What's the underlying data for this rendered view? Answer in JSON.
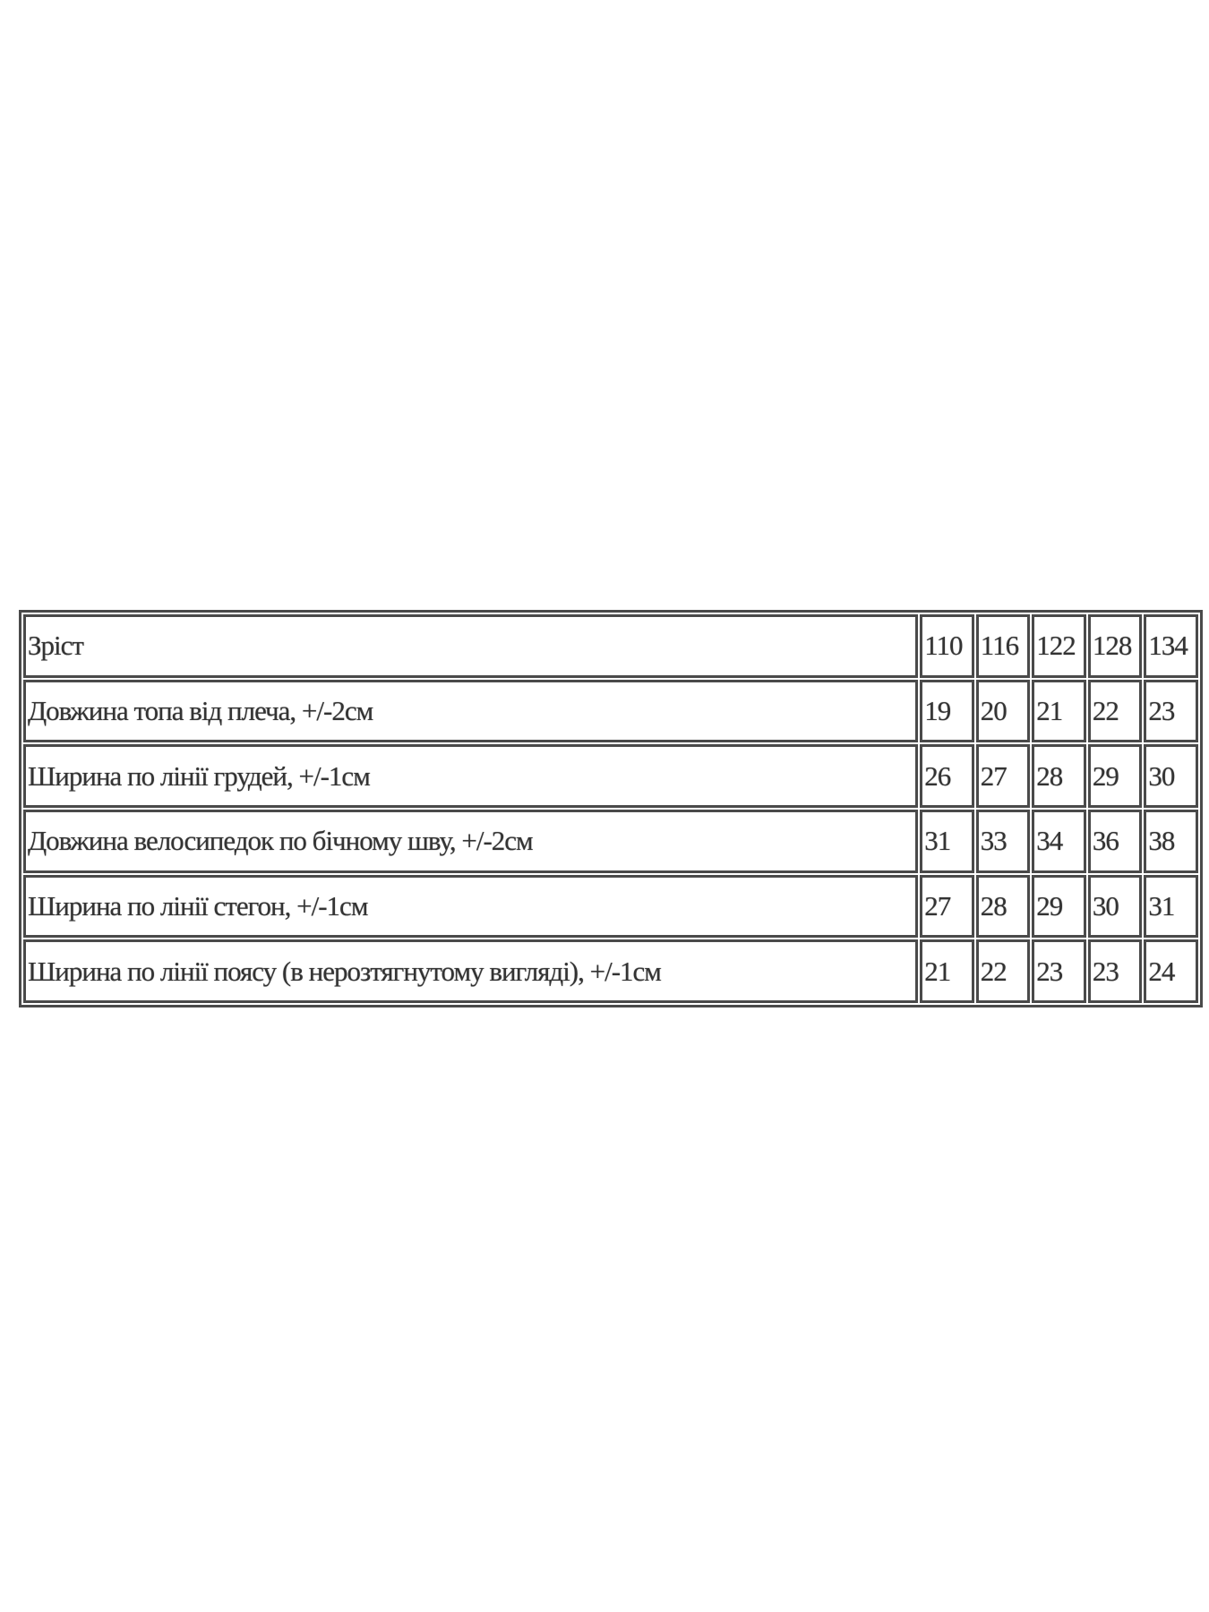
{
  "size_table": {
    "header": {
      "label": "Зріст",
      "sizes": [
        "110",
        "116",
        "122",
        "128",
        "134"
      ]
    },
    "rows": [
      {
        "label": "Довжина топа від плеча, +/-2см",
        "values": [
          "19",
          "20",
          "21",
          "22",
          "23"
        ]
      },
      {
        "label": "Ширина по лінії грудей, +/-1см",
        "values": [
          "26",
          "27",
          "28",
          "29",
          "30"
        ]
      },
      {
        "label": "Довжина велосипедок по бічному шву, +/-2см",
        "values": [
          "31",
          "33",
          "34",
          "36",
          "38"
        ]
      },
      {
        "label": "Ширина по лінії стегон, +/-1см",
        "values": [
          "27",
          "28",
          "29",
          "30",
          "31"
        ]
      },
      {
        "label": "Ширина по лінії поясу (в нерозтягнутому вигляді), +/-1см",
        "values": [
          "21",
          "22",
          "23",
          "23",
          "24"
        ]
      }
    ]
  }
}
